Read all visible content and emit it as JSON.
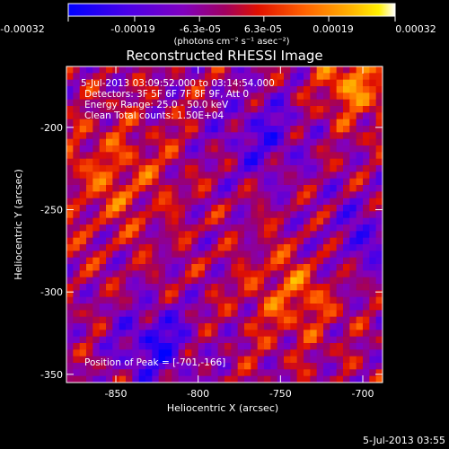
{
  "colorbar": {
    "tick_labels": [
      "-0.00032",
      "-0.00019",
      "-6.3e-05",
      "6.3e-05",
      "0.00019",
      "0.00032"
    ],
    "ticks": [
      -0.00032,
      -0.00019,
      -6.3e-05,
      6.3e-05,
      0.00019,
      0.00032
    ],
    "range": [
      -0.00032,
      0.00032
    ],
    "unit_label": "(photons cm⁻² s⁻¹ asec⁻²)",
    "colors": [
      "#0000ff",
      "#5a00e0",
      "#8a00b0",
      "#b00070",
      "#e02000",
      "#ff6a00",
      "#ffa800",
      "#ffe000",
      "#ffffff"
    ]
  },
  "chart_data": {
    "type": "heatmap",
    "title": "Reconstructed RHESSI Image",
    "xlabel": "Heliocentric X (arcsec)",
    "ylabel": "Heliocentric Y (arcsec)",
    "xlim": [
      -880,
      -688
    ],
    "ylim": [
      -355,
      -163
    ],
    "x_ticks": [
      -850,
      -800,
      -750,
      -700
    ],
    "x_tick_labels": [
      "-850",
      "-800",
      "-750",
      "-700"
    ],
    "y_ticks": [
      -350,
      -300,
      -250,
      -200
    ],
    "y_tick_labels": [
      "-350",
      "-300",
      "-250",
      "-200"
    ],
    "peak": [
      -701,
      -166
    ],
    "info": {
      "time_range": "5-Jul-2013 03:09:52.000 to 03:14:54.000",
      "detectors": "Detectors: 3F 5F 6F 7F 8F 9F, Att 0",
      "energy": "Energy Range: 25.0 - 50.0 keV",
      "clean": "Clean    Total counts: 1.50E+04",
      "peak_label": "Position of Peak = [-701,-166]"
    }
  },
  "footer": {
    "timestamp": "5-Jul-2013 03:55"
  }
}
